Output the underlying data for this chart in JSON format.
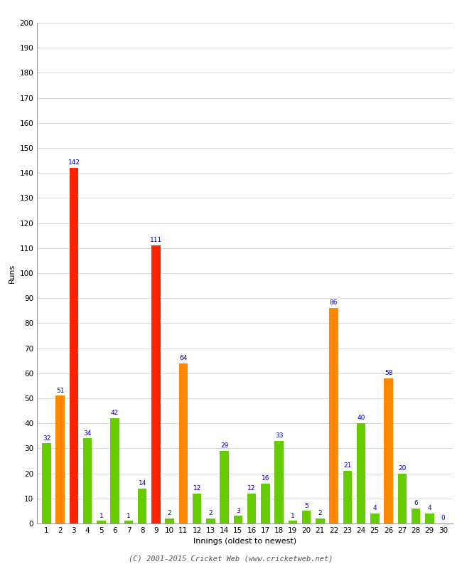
{
  "innings": [
    1,
    2,
    3,
    4,
    5,
    6,
    7,
    8,
    9,
    10,
    11,
    12,
    13,
    14,
    15,
    16,
    17,
    18,
    19,
    20,
    21,
    22,
    23,
    24,
    25,
    26,
    27,
    28,
    29,
    30
  ],
  "values": [
    32,
    51,
    142,
    34,
    1,
    42,
    1,
    14,
    111,
    2,
    64,
    12,
    2,
    29,
    3,
    12,
    16,
    33,
    1,
    5,
    2,
    86,
    21,
    40,
    4,
    58,
    20,
    6,
    4,
    0
  ],
  "colors": [
    "#66cc00",
    "#ff8800",
    "#ff2200",
    "#66cc00",
    "#66cc00",
    "#66cc00",
    "#66cc00",
    "#66cc00",
    "#ff2200",
    "#66cc00",
    "#ff8800",
    "#66cc00",
    "#66cc00",
    "#66cc00",
    "#66cc00",
    "#66cc00",
    "#66cc00",
    "#66cc00",
    "#66cc00",
    "#66cc00",
    "#66cc00",
    "#ff8800",
    "#66cc00",
    "#66cc00",
    "#66cc00",
    "#ff8800",
    "#66cc00",
    "#66cc00",
    "#66cc00",
    "#66cc00"
  ],
  "ylabel": "Runs",
  "xlabel": "Innings (oldest to newest)",
  "ylim": [
    0,
    200
  ],
  "yticks": [
    0,
    10,
    20,
    30,
    40,
    50,
    60,
    70,
    80,
    90,
    100,
    110,
    120,
    130,
    140,
    150,
    160,
    170,
    180,
    190,
    200
  ],
  "label_color": "#0000cc",
  "label_fontsize": 6.5,
  "axis_label_fontsize": 8,
  "tick_fontsize": 7.5,
  "background_color": "#ffffff",
  "footer": "(C) 2001-2015 Cricket Web (www.cricketweb.net)",
  "bar_width": 0.65
}
